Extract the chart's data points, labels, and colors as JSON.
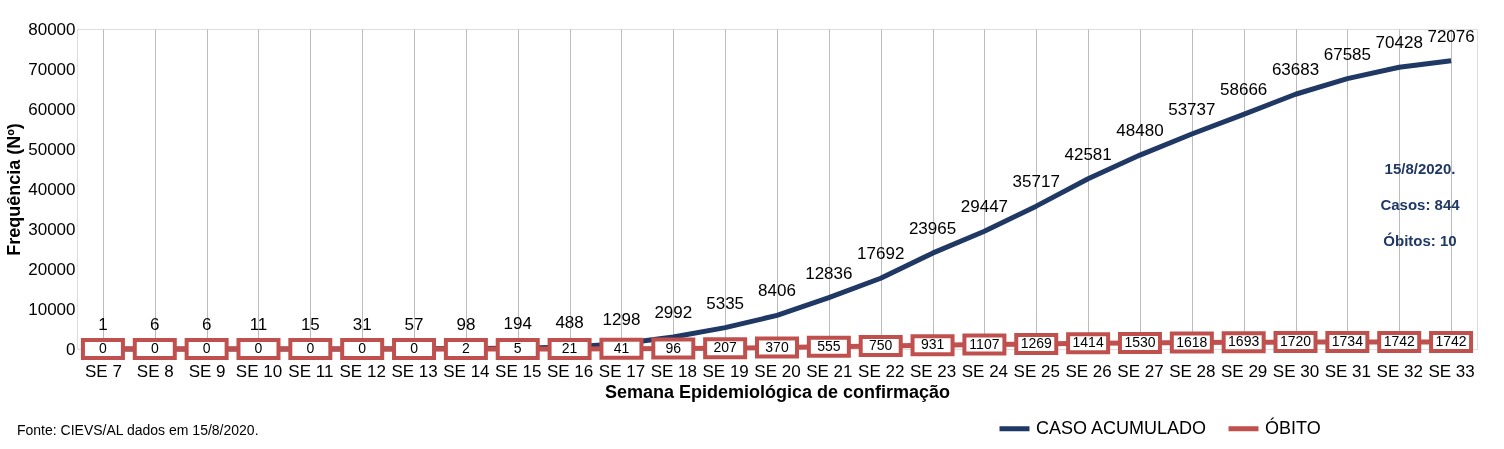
{
  "chart_data": {
    "type": "line",
    "xlabel": "Semana Epidemiológica de confirmação",
    "ylabel": "Frequência (Nº)",
    "categories": [
      "SE 7",
      "SE 8",
      "SE 9",
      "SE 10",
      "SE 11",
      "SE 12",
      "SE 13",
      "SE 14",
      "SE 15",
      "SE 16",
      "SE 17",
      "SE 18",
      "SE 19",
      "SE 20",
      "SE 21",
      "SE 22",
      "SE 23",
      "SE 24",
      "SE 25",
      "SE 26",
      "SE 27",
      "SE 28",
      "SE 29",
      "SE 30",
      "SE 31",
      "SE 32",
      "SE 33"
    ],
    "series": [
      {
        "name": "CASO ACUMULADO",
        "color": "#203864",
        "marker": "none",
        "values": [
          1,
          6,
          6,
          11,
          15,
          31,
          57,
          98,
          194,
          488,
          1298,
          2992,
          5335,
          8406,
          12836,
          17692,
          23965,
          29447,
          35717,
          42581,
          48480,
          53737,
          58666,
          63683,
          67585,
          70428,
          72076
        ]
      },
      {
        "name": "ÓBITO",
        "color": "#c0504d",
        "marker": "square",
        "values": [
          0,
          0,
          0,
          0,
          0,
          0,
          0,
          2,
          5,
          21,
          41,
          96,
          207,
          370,
          555,
          750,
          931,
          1107,
          1269,
          1414,
          1530,
          1618,
          1693,
          1720,
          1734,
          1742,
          1742
        ]
      }
    ],
    "ylim": [
      0,
      80000
    ],
    "yticks": [
      0,
      10000,
      20000,
      30000,
      40000,
      50000,
      60000,
      70000,
      80000
    ],
    "grid": "x",
    "legend": "bottom right",
    "data_labels": true,
    "line_style": "solid",
    "annotations": [
      "Fonte: CIEVS/AL dados em 15/8/2020.",
      "15/8/2020.",
      "Casos: 844",
      "Óbitos: 10"
    ]
  }
}
